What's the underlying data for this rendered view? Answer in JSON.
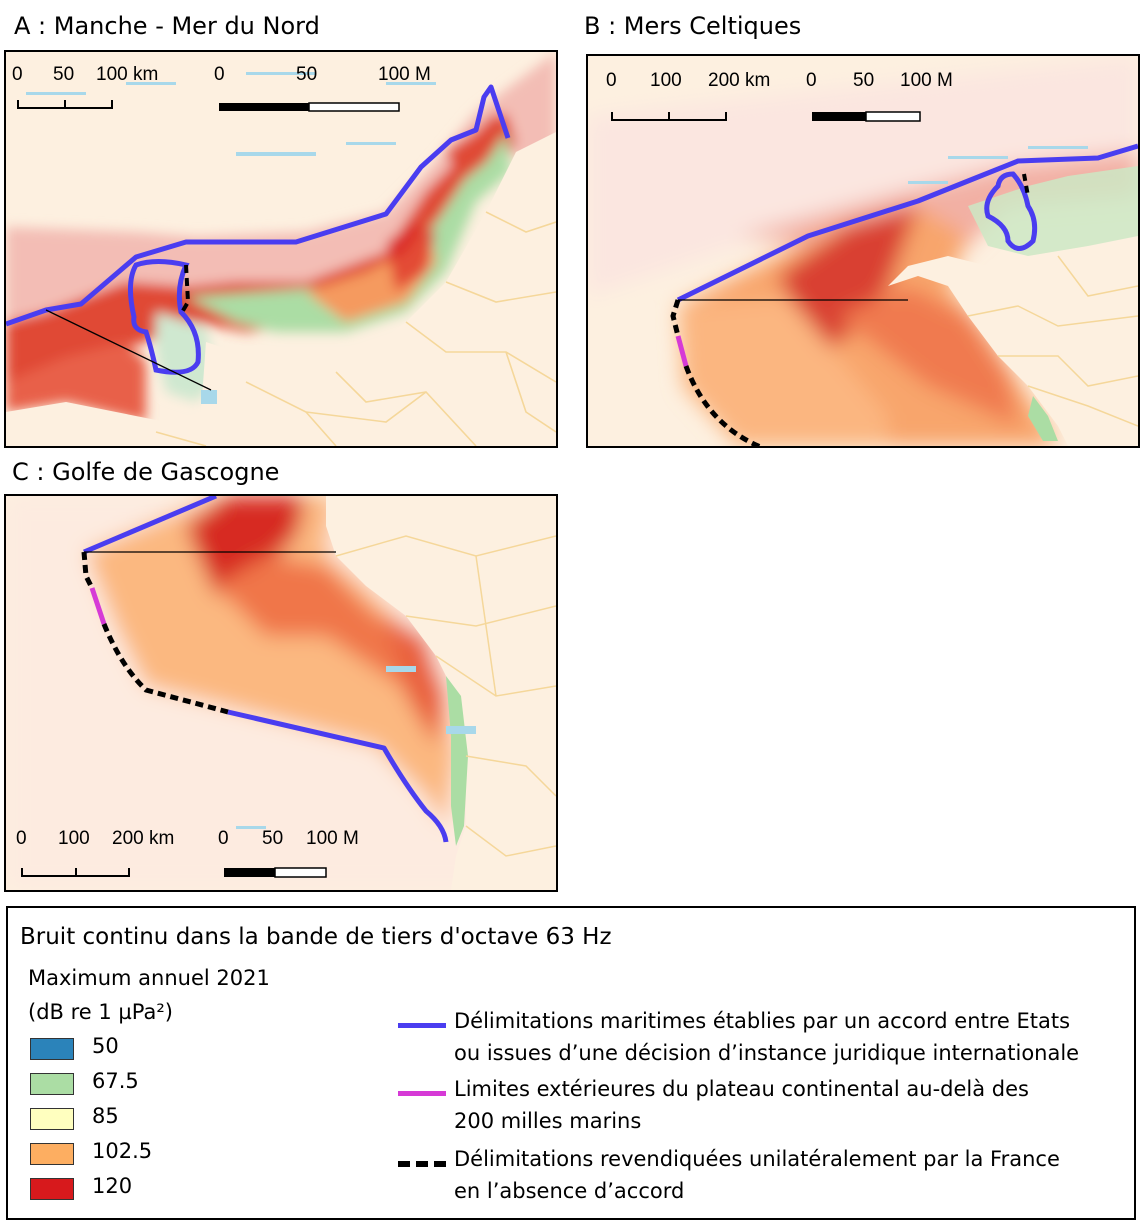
{
  "panels": {
    "a": {
      "title": "A : Manche - Mer du Nord",
      "scale_km": [
        "0",
        "50",
        "100 km"
      ],
      "scale_nm": [
        "0",
        "50",
        "100 M"
      ]
    },
    "b": {
      "title": "B : Mers Celtiques",
      "scale_km": [
        "0",
        "100",
        "200 km"
      ],
      "scale_nm": [
        "0",
        "50",
        "100 M"
      ]
    },
    "c": {
      "title": "C : Golfe de Gascogne",
      "scale_km": [
        "0",
        "100",
        "200 km"
      ],
      "scale_nm": [
        "0",
        "50",
        "100 M"
      ]
    }
  },
  "legend": {
    "title": "Bruit continu dans la bande de tiers d'octave 63 Hz",
    "subtitle_1": "Maximum annuel 2021",
    "subtitle_2": "(dB re 1 µPa²)",
    "classes": [
      {
        "label": "50",
        "color": "#2b83ba"
      },
      {
        "label": "67.5",
        "color": "#abdda4"
      },
      {
        "label": "85",
        "color": "#ffffbf"
      },
      {
        "label": "102.5",
        "color": "#fdae61"
      },
      {
        "label": "120",
        "color": "#d7191c"
      }
    ],
    "lines": [
      {
        "line1": "Délimitations maritimes établies par un accord entre Etats",
        "line2": "ou issues d’une décision d’instance juridique internationale",
        "color": "#4a3df0",
        "style": "solid"
      },
      {
        "line1": "Limites extérieures du plateau continental au-delà des",
        "line2": "200 milles marins",
        "color": "#d63ad6",
        "style": "solid"
      },
      {
        "line1": "Délimitations revendiquées unilatéralement par la France",
        "line2": "en l’absence d’accord",
        "color": "#000000",
        "style": "dashed"
      }
    ]
  },
  "colors": {
    "land": "#fdf0e0",
    "boundary_agreement": "#4a3df0",
    "boundary_ecs": "#d63ad6",
    "boundary_unilateral": "#000000",
    "admin_borders": "#f5d79a"
  }
}
